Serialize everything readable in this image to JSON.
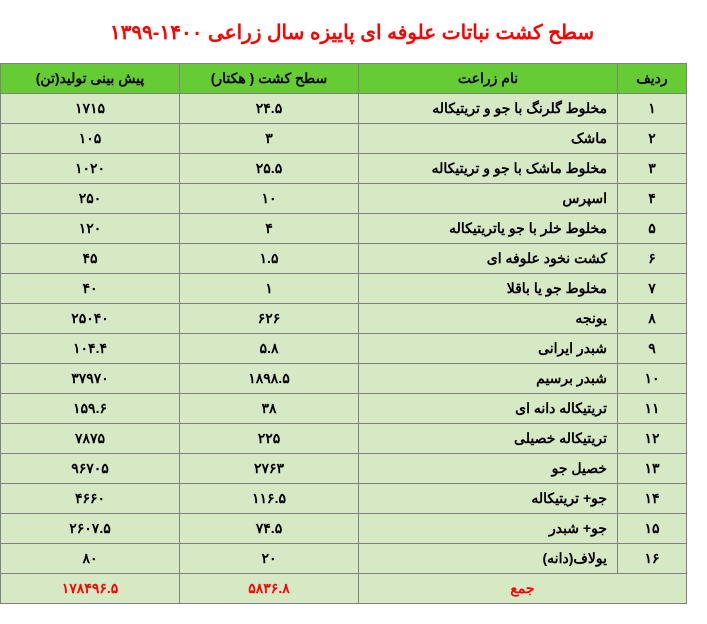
{
  "title": "سطح کشت نباتات علوفه ای پاییزه سال زراعی ۱۴۰۰-۱۳۹۹",
  "table": {
    "header_bg": "#66cc33",
    "alt_bg": "#d6e8c4",
    "white_bg": "#ffffff",
    "columns": [
      "ردیف",
      "نام زراعت",
      "سطح کشت ( هکتار)",
      "پیش بینی تولید(تن)"
    ],
    "rows": [
      {
        "n": "۱",
        "name": "مخلوط گلرنگ با جو و تریتیکاله",
        "area": "۲۴.۵",
        "prod": "۱۷۱۵"
      },
      {
        "n": "۲",
        "name": "ماشک",
        "area": "۳",
        "prod": "۱۰۵"
      },
      {
        "n": "۳",
        "name": "مخلوط ماشک با جو و تریتیکاله",
        "area": "۲۵.۵",
        "prod": "۱۰۲۰"
      },
      {
        "n": "۴",
        "name": "اسپرس",
        "area": "۱۰",
        "prod": "۲۵۰"
      },
      {
        "n": "۵",
        "name": "مخلوط خلر با جو یاتریتیکاله",
        "area": "۴",
        "prod": "۱۲۰"
      },
      {
        "n": "۶",
        "name": "کشت نخود علوفه ای",
        "area": "۱.۵",
        "prod": "۴۵"
      },
      {
        "n": "۷",
        "name": "مخلوط جو یا باقلا",
        "area": "۱",
        "prod": "۴۰"
      },
      {
        "n": "۸",
        "name": "یونجه",
        "area": "۶۲۶",
        "prod": "۲۵۰۴۰"
      },
      {
        "n": "۹",
        "name": "شبدر ایرانی",
        "area": "۵.۸",
        "prod": "۱۰۴.۴"
      },
      {
        "n": "۱۰",
        "name": "شبدر برسیم",
        "area": "۱۸۹۸.۵",
        "prod": "۳۷۹۷۰"
      },
      {
        "n": "۱۱",
        "name": "تریتیکاله دانه ای",
        "area": "۳۸",
        "prod": "۱۵۹.۶"
      },
      {
        "n": "۱۲",
        "name": "تریتیکاله خصیلی",
        "area": "۲۲۵",
        "prod": "۷۸۷۵"
      },
      {
        "n": "۱۳",
        "name": "خصیل جو",
        "area": "۲۷۶۳",
        "prod": "۹۶۷۰۵"
      },
      {
        "n": "۱۴",
        "name": "جو+ تریتیکاله",
        "area": "۱۱۶.۵",
        "prod": "۴۶۶۰"
      },
      {
        "n": "۱۵",
        "name": "جو+ شبدر",
        "area": "۷۴.۵",
        "prod": "۲۶۰۷.۵"
      },
      {
        "n": "۱۶",
        "name": "یولاف(دانه)",
        "area": "۲۰",
        "prod": "۸۰"
      }
    ],
    "total": {
      "label": "جمع",
      "area": "۵۸۳۶.۸",
      "prod": "۱۷۸۴۹۶.۵"
    }
  }
}
